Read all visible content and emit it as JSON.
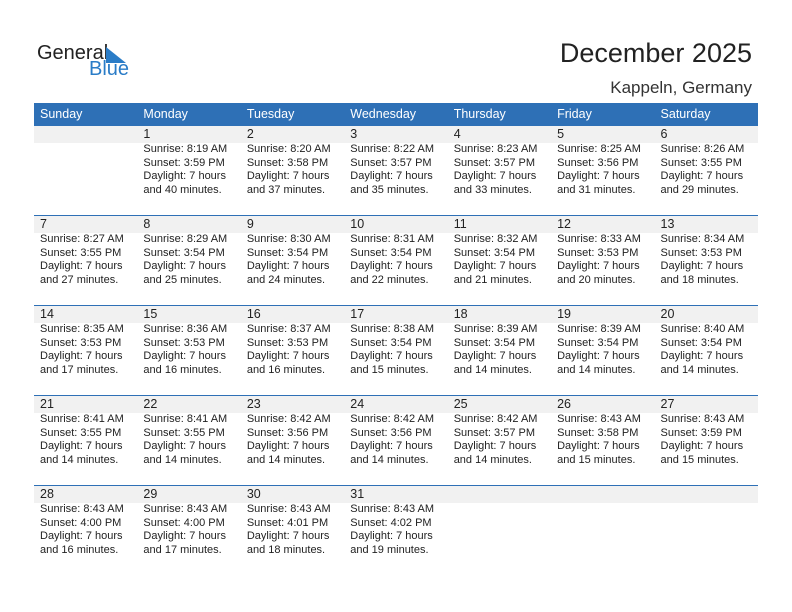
{
  "logo": {
    "text1": "General",
    "text2": "Blue"
  },
  "title": "December 2025",
  "location": "Kappeln, Germany",
  "colors": {
    "header": "#2e70b6",
    "band": "#f1f1f1",
    "logo_blue": "#2a7cc7"
  },
  "days": [
    "Sunday",
    "Monday",
    "Tuesday",
    "Wednesday",
    "Thursday",
    "Friday",
    "Saturday"
  ],
  "weeks": [
    [
      null,
      {
        "day": "1",
        "sunrise": "Sunrise: 8:19 AM",
        "sunset": "Sunset: 3:59 PM",
        "daylight": "Daylight: 7 hours",
        "minutes": "and 40 minutes."
      },
      {
        "day": "2",
        "sunrise": "Sunrise: 8:20 AM",
        "sunset": "Sunset: 3:58 PM",
        "daylight": "Daylight: 7 hours",
        "minutes": "and 37 minutes."
      },
      {
        "day": "3",
        "sunrise": "Sunrise: 8:22 AM",
        "sunset": "Sunset: 3:57 PM",
        "daylight": "Daylight: 7 hours",
        "minutes": "and 35 minutes."
      },
      {
        "day": "4",
        "sunrise": "Sunrise: 8:23 AM",
        "sunset": "Sunset: 3:57 PM",
        "daylight": "Daylight: 7 hours",
        "minutes": "and 33 minutes."
      },
      {
        "day": "5",
        "sunrise": "Sunrise: 8:25 AM",
        "sunset": "Sunset: 3:56 PM",
        "daylight": "Daylight: 7 hours",
        "minutes": "and 31 minutes."
      },
      {
        "day": "6",
        "sunrise": "Sunrise: 8:26 AM",
        "sunset": "Sunset: 3:55 PM",
        "daylight": "Daylight: 7 hours",
        "minutes": "and 29 minutes."
      }
    ],
    [
      {
        "day": "7",
        "sunrise": "Sunrise: 8:27 AM",
        "sunset": "Sunset: 3:55 PM",
        "daylight": "Daylight: 7 hours",
        "minutes": "and 27 minutes."
      },
      {
        "day": "8",
        "sunrise": "Sunrise: 8:29 AM",
        "sunset": "Sunset: 3:54 PM",
        "daylight": "Daylight: 7 hours",
        "minutes": "and 25 minutes."
      },
      {
        "day": "9",
        "sunrise": "Sunrise: 8:30 AM",
        "sunset": "Sunset: 3:54 PM",
        "daylight": "Daylight: 7 hours",
        "minutes": "and 24 minutes."
      },
      {
        "day": "10",
        "sunrise": "Sunrise: 8:31 AM",
        "sunset": "Sunset: 3:54 PM",
        "daylight": "Daylight: 7 hours",
        "minutes": "and 22 minutes."
      },
      {
        "day": "11",
        "sunrise": "Sunrise: 8:32 AM",
        "sunset": "Sunset: 3:54 PM",
        "daylight": "Daylight: 7 hours",
        "minutes": "and 21 minutes."
      },
      {
        "day": "12",
        "sunrise": "Sunrise: 8:33 AM",
        "sunset": "Sunset: 3:53 PM",
        "daylight": "Daylight: 7 hours",
        "minutes": "and 20 minutes."
      },
      {
        "day": "13",
        "sunrise": "Sunrise: 8:34 AM",
        "sunset": "Sunset: 3:53 PM",
        "daylight": "Daylight: 7 hours",
        "minutes": "and 18 minutes."
      }
    ],
    [
      {
        "day": "14",
        "sunrise": "Sunrise: 8:35 AM",
        "sunset": "Sunset: 3:53 PM",
        "daylight": "Daylight: 7 hours",
        "minutes": "and 17 minutes."
      },
      {
        "day": "15",
        "sunrise": "Sunrise: 8:36 AM",
        "sunset": "Sunset: 3:53 PM",
        "daylight": "Daylight: 7 hours",
        "minutes": "and 16 minutes."
      },
      {
        "day": "16",
        "sunrise": "Sunrise: 8:37 AM",
        "sunset": "Sunset: 3:53 PM",
        "daylight": "Daylight: 7 hours",
        "minutes": "and 16 minutes."
      },
      {
        "day": "17",
        "sunrise": "Sunrise: 8:38 AM",
        "sunset": "Sunset: 3:54 PM",
        "daylight": "Daylight: 7 hours",
        "minutes": "and 15 minutes."
      },
      {
        "day": "18",
        "sunrise": "Sunrise: 8:39 AM",
        "sunset": "Sunset: 3:54 PM",
        "daylight": "Daylight: 7 hours",
        "minutes": "and 14 minutes."
      },
      {
        "day": "19",
        "sunrise": "Sunrise: 8:39 AM",
        "sunset": "Sunset: 3:54 PM",
        "daylight": "Daylight: 7 hours",
        "minutes": "and 14 minutes."
      },
      {
        "day": "20",
        "sunrise": "Sunrise: 8:40 AM",
        "sunset": "Sunset: 3:54 PM",
        "daylight": "Daylight: 7 hours",
        "minutes": "and 14 minutes."
      }
    ],
    [
      {
        "day": "21",
        "sunrise": "Sunrise: 8:41 AM",
        "sunset": "Sunset: 3:55 PM",
        "daylight": "Daylight: 7 hours",
        "minutes": "and 14 minutes."
      },
      {
        "day": "22",
        "sunrise": "Sunrise: 8:41 AM",
        "sunset": "Sunset: 3:55 PM",
        "daylight": "Daylight: 7 hours",
        "minutes": "and 14 minutes."
      },
      {
        "day": "23",
        "sunrise": "Sunrise: 8:42 AM",
        "sunset": "Sunset: 3:56 PM",
        "daylight": "Daylight: 7 hours",
        "minutes": "and 14 minutes."
      },
      {
        "day": "24",
        "sunrise": "Sunrise: 8:42 AM",
        "sunset": "Sunset: 3:56 PM",
        "daylight": "Daylight: 7 hours",
        "minutes": "and 14 minutes."
      },
      {
        "day": "25",
        "sunrise": "Sunrise: 8:42 AM",
        "sunset": "Sunset: 3:57 PM",
        "daylight": "Daylight: 7 hours",
        "minutes": "and 14 minutes."
      },
      {
        "day": "26",
        "sunrise": "Sunrise: 8:43 AM",
        "sunset": "Sunset: 3:58 PM",
        "daylight": "Daylight: 7 hours",
        "minutes": "and 15 minutes."
      },
      {
        "day": "27",
        "sunrise": "Sunrise: 8:43 AM",
        "sunset": "Sunset: 3:59 PM",
        "daylight": "Daylight: 7 hours",
        "minutes": "and 15 minutes."
      }
    ],
    [
      {
        "day": "28",
        "sunrise": "Sunrise: 8:43 AM",
        "sunset": "Sunset: 4:00 PM",
        "daylight": "Daylight: 7 hours",
        "minutes": "and 16 minutes."
      },
      {
        "day": "29",
        "sunrise": "Sunrise: 8:43 AM",
        "sunset": "Sunset: 4:00 PM",
        "daylight": "Daylight: 7 hours",
        "minutes": "and 17 minutes."
      },
      {
        "day": "30",
        "sunrise": "Sunrise: 8:43 AM",
        "sunset": "Sunset: 4:01 PM",
        "daylight": "Daylight: 7 hours",
        "minutes": "and 18 minutes."
      },
      {
        "day": "31",
        "sunrise": "Sunrise: 8:43 AM",
        "sunset": "Sunset: 4:02 PM",
        "daylight": "Daylight: 7 hours",
        "minutes": "and 19 minutes."
      },
      null,
      null,
      null
    ]
  ]
}
